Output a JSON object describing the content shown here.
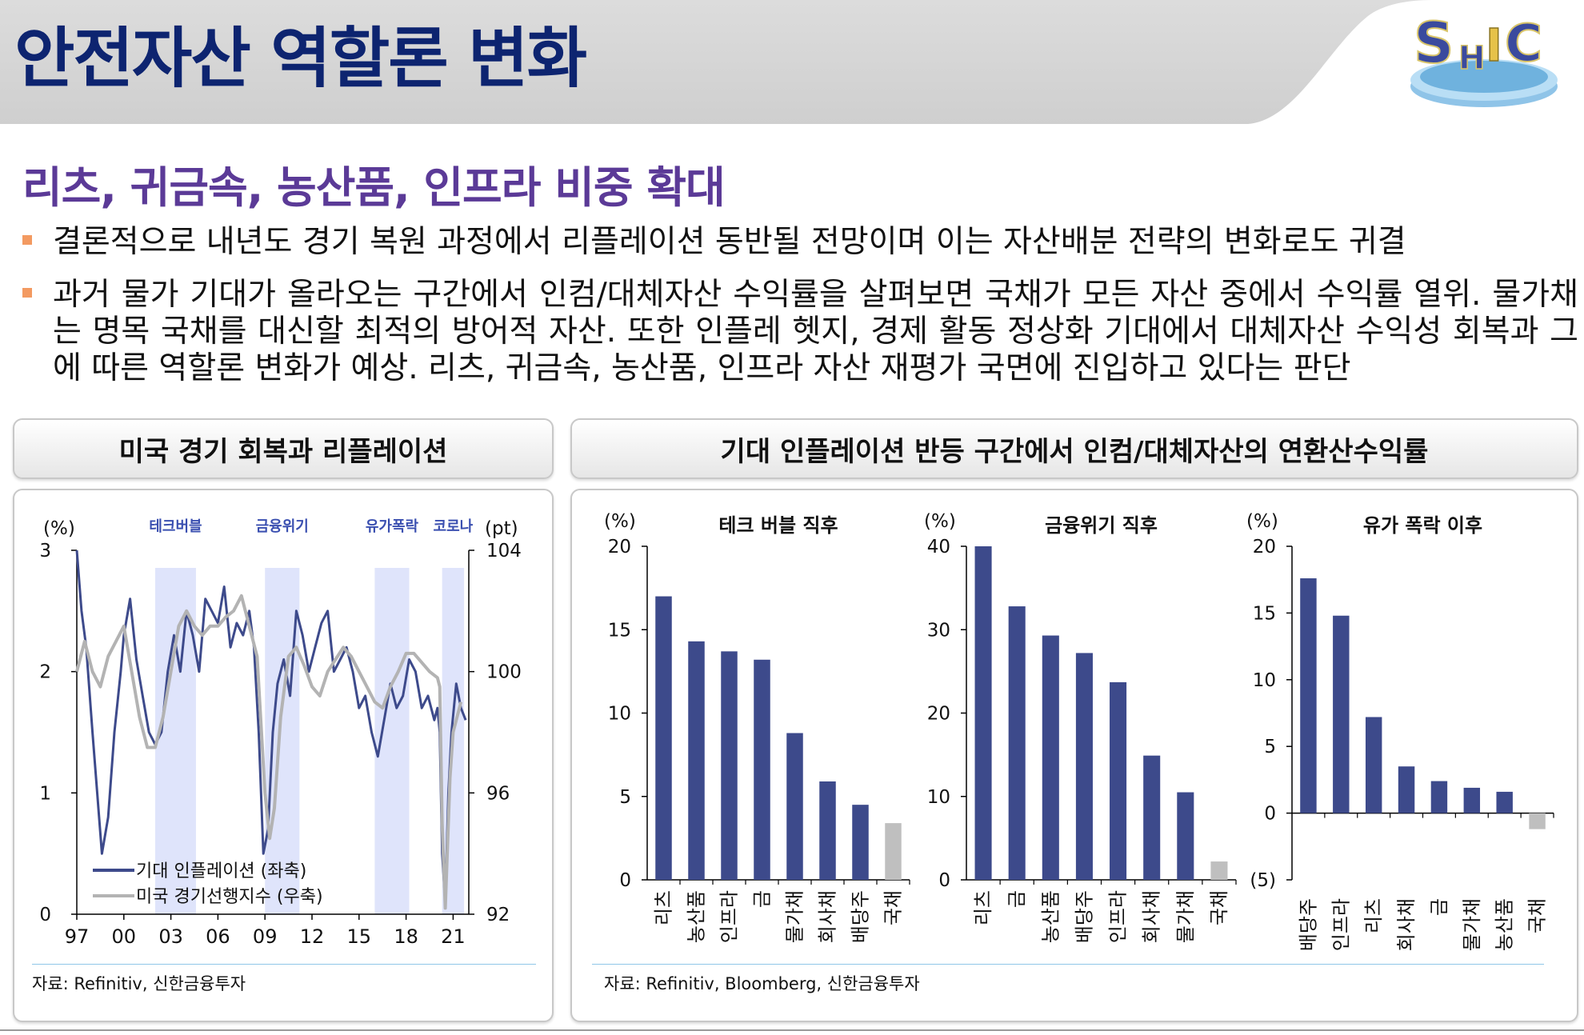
{
  "header": {
    "title": "안전자산 역할론 변화",
    "logo_text": "SHIC"
  },
  "subtitle": "리츠, 귀금속, 농산품, 인프라 비중 확대",
  "bullets": [
    "결론적으로 내년도 경기 복원 과정에서 리플레이션 동반될 전망이며 이는 자산배분 전략의 변화로도 귀결",
    "과거 물가 기대가 올라오는 구간에서 인컴/대체자산 수익률을 살펴보면 국채가 모든 자산 중에서 수익률 열위. 물가채는 명목 국채를 대신할 최적의 방어적 자산. 또한 인플레 헷지, 경제 활동 정상화 기대에서 대체자산 수익성 회복과 그에 따른 역할론 변화가 예상. 리츠, 귀금속, 농산품, 인프라 자산 재평가 국면에 진입하고 있다는 판단"
  ],
  "left_panel": {
    "title": "미국 경기 회복과 리플레이션",
    "source": "자료: Refinitiv, 신한금융투자"
  },
  "right_panel": {
    "title": "기대 인플레이션 반등 구간에서 인컴/대체자산의 연환산수익률",
    "source": "자료: Refinitiv, Bloomberg, 신한금융투자"
  },
  "colors": {
    "navy": "#3d4a8b",
    "gray_line": "#b3b3b3",
    "gray_bar": "#bfbfbf",
    "shade": "#dfe4fb",
    "title_navy": "#0d2470",
    "subtitle_purple": "#5b3a97",
    "bullet_orange": "#f39a61"
  },
  "chart_data": [
    {
      "type": "line",
      "title": "미국 경기 회복과 리플레이션",
      "left_unit": "(%)",
      "right_unit": "(pt)",
      "y_left": {
        "min": 0,
        "max": 3,
        "ticks": [
          0,
          1,
          2,
          3
        ]
      },
      "y_right": {
        "min": 92,
        "max": 104,
        "ticks": [
          92,
          96,
          100,
          104
        ]
      },
      "x_ticks": [
        "97",
        "00",
        "03",
        "06",
        "09",
        "12",
        "15",
        "18",
        "21"
      ],
      "x_range": [
        1997,
        2022
      ],
      "shaded_periods": [
        {
          "label": "테크버블",
          "start": 2002.0,
          "end": 2004.6
        },
        {
          "label": "금융위기",
          "start": 2009.0,
          "end": 2011.2
        },
        {
          "label": "유가폭락",
          "start": 2016.0,
          "end": 2018.2
        },
        {
          "label": "코로나",
          "start": 2020.3,
          "end": 2021.7
        }
      ],
      "series": [
        {
          "name": "기대 인플레이션 (좌축)",
          "axis": "left",
          "x": [
            1997.0,
            1997.3,
            1997.6,
            1998.0,
            1998.3,
            1998.6,
            1999.0,
            1999.4,
            1999.8,
            2000.0,
            2000.4,
            2000.8,
            2001.2,
            2001.6,
            2002.0,
            2002.4,
            2002.8,
            2003.2,
            2003.6,
            2004.0,
            2004.4,
            2004.8,
            2005.2,
            2005.6,
            2006.0,
            2006.4,
            2006.8,
            2007.2,
            2007.6,
            2008.0,
            2008.3,
            2008.6,
            2008.9,
            2009.2,
            2009.5,
            2009.8,
            2010.2,
            2010.6,
            2011.0,
            2011.4,
            2011.8,
            2012.2,
            2012.6,
            2013.0,
            2013.4,
            2013.8,
            2014.2,
            2014.6,
            2015.0,
            2015.4,
            2015.8,
            2016.2,
            2016.6,
            2017.0,
            2017.4,
            2017.8,
            2018.2,
            2018.6,
            2019.0,
            2019.4,
            2019.8,
            2020.0,
            2020.15,
            2020.3,
            2020.5,
            2020.7,
            2020.9,
            2021.2,
            2021.5,
            2021.8
          ],
          "values": [
            3.0,
            2.5,
            2.2,
            1.5,
            1.0,
            0.5,
            0.8,
            1.5,
            2.0,
            2.3,
            2.6,
            2.1,
            1.8,
            1.5,
            1.4,
            1.5,
            2.0,
            2.3,
            2.0,
            2.5,
            2.3,
            2.0,
            2.6,
            2.5,
            2.4,
            2.7,
            2.2,
            2.4,
            2.3,
            2.5,
            2.2,
            1.5,
            0.5,
            0.7,
            1.5,
            1.9,
            2.1,
            1.8,
            2.5,
            2.3,
            2.0,
            2.2,
            2.4,
            2.5,
            2.0,
            2.1,
            2.2,
            2.0,
            1.7,
            1.8,
            1.5,
            1.3,
            1.6,
            1.9,
            1.7,
            1.8,
            2.1,
            2.0,
            1.7,
            1.8,
            1.6,
            1.7,
            1.5,
            0.5,
            0.1,
            1.0,
            1.5,
            1.9,
            1.7,
            1.6
          ]
        },
        {
          "name": "미국 경기선행지수 (우축)",
          "axis": "right",
          "x": [
            1997.0,
            1997.5,
            1998.0,
            1998.5,
            1999.0,
            1999.5,
            2000.0,
            2000.5,
            2001.0,
            2001.5,
            2002.0,
            2002.5,
            2003.0,
            2003.5,
            2004.0,
            2004.5,
            2005.0,
            2005.5,
            2006.0,
            2006.5,
            2007.0,
            2007.5,
            2008.0,
            2008.5,
            2009.0,
            2009.3,
            2009.6,
            2010.0,
            2010.5,
            2011.0,
            2011.5,
            2012.0,
            2012.5,
            2013.0,
            2013.5,
            2014.0,
            2014.5,
            2015.0,
            2015.5,
            2016.0,
            2016.5,
            2017.0,
            2017.5,
            2018.0,
            2018.5,
            2019.0,
            2019.5,
            2020.0,
            2020.15,
            2020.3,
            2020.5,
            2020.8,
            2021.0,
            2021.5
          ],
          "values": [
            100.0,
            101.0,
            100.0,
            99.5,
            100.5,
            101.0,
            101.5,
            100.0,
            98.5,
            97.5,
            97.5,
            98.5,
            100.0,
            101.5,
            102.0,
            101.5,
            101.2,
            101.5,
            101.5,
            101.8,
            102.0,
            102.5,
            101.5,
            100.5,
            96.0,
            94.5,
            95.5,
            98.5,
            100.5,
            100.8,
            100.2,
            99.5,
            99.2,
            100.0,
            100.4,
            100.8,
            100.5,
            100.0,
            99.5,
            99.0,
            98.8,
            99.5,
            100.0,
            100.6,
            100.6,
            100.3,
            100.0,
            99.8,
            99.5,
            95.0,
            92.2,
            96.5,
            98.0,
            99.0
          ]
        }
      ]
    },
    {
      "type": "bar",
      "title": "테크 버블 직후",
      "unit": "(%)",
      "ylim": [
        0,
        20
      ],
      "yticks": [
        0,
        5,
        10,
        15,
        20
      ],
      "categories": [
        "리츠",
        "농산품",
        "인프라",
        "금",
        "물가채",
        "회사채",
        "배당주",
        "국채"
      ],
      "values": [
        17.0,
        14.3,
        13.7,
        13.2,
        8.8,
        5.9,
        4.5,
        3.4
      ]
    },
    {
      "type": "bar",
      "title": "금융위기 직후",
      "unit": "(%)",
      "ylim": [
        0,
        40
      ],
      "yticks": [
        0,
        10,
        20,
        30,
        40
      ],
      "categories": [
        "리츠",
        "금",
        "농산품",
        "배당주",
        "인프라",
        "회사채",
        "물가채",
        "국채"
      ],
      "values": [
        40.0,
        32.8,
        29.3,
        27.2,
        23.7,
        14.9,
        10.5,
        2.2
      ]
    },
    {
      "type": "bar",
      "title": "유가 폭락 이후",
      "unit": "(%)",
      "ylim": [
        -5,
        20
      ],
      "yticks": [
        -5,
        0,
        5,
        10,
        15,
        20
      ],
      "ytick_labels": [
        "(5)",
        "0",
        "5",
        "10",
        "15",
        "20"
      ],
      "categories": [
        "배당주",
        "인프라",
        "리츠",
        "회사채",
        "금",
        "물가채",
        "농산품",
        "국채"
      ],
      "values": [
        17.6,
        14.8,
        7.2,
        3.5,
        2.4,
        1.9,
        1.6,
        -1.2
      ]
    }
  ]
}
